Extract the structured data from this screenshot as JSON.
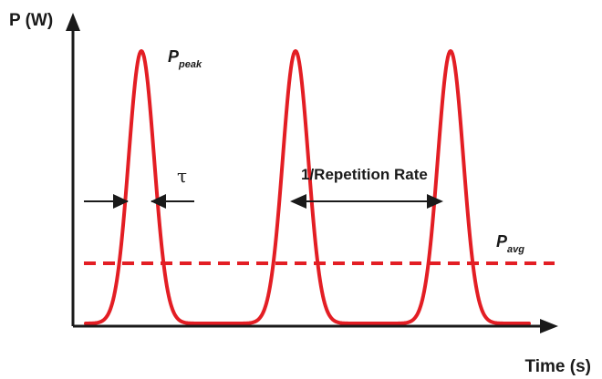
{
  "axes": {
    "y_label": "P (W)",
    "x_label": "Time (s)"
  },
  "labels": {
    "peak_symbol": "P",
    "peak_subscript": "peak",
    "avg_symbol": "P",
    "avg_subscript": "avg",
    "pulse_width_symbol": "τ",
    "period_label": "1/Repetition Rate"
  },
  "colors": {
    "pulse": "#e31e24",
    "average": "#e31e24",
    "axis": "#1a1a1a"
  },
  "pulses": {
    "count": 3,
    "shape": "gaussian"
  }
}
